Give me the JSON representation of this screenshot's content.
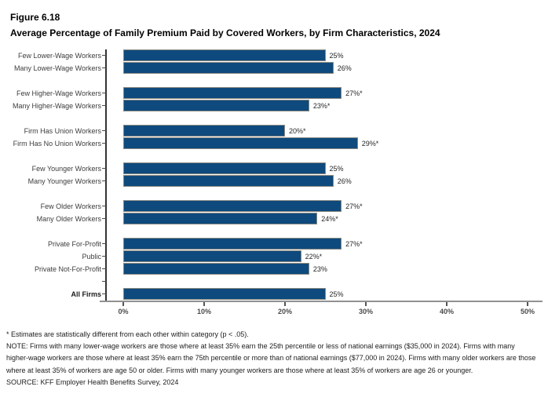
{
  "header": {
    "figure_label": "Figure 6.18",
    "title": "Average Percentage of Family Premium Paid by Covered Workers, by Firm Characteristics, 2024"
  },
  "chart_data": {
    "type": "bar",
    "orientation": "horizontal",
    "title": "Average Percentage of Family Premium Paid by Covered Workers, by Firm Characteristics, 2024",
    "value_unit": "%",
    "xlim": [
      0,
      52
    ],
    "x_tick_values": [
      0,
      10,
      20,
      30,
      40,
      50
    ],
    "x_tick_labels": [
      "0%",
      "10%",
      "20%",
      "30%",
      "40%",
      "50%"
    ],
    "bar_color": "#0e4a7d",
    "bar_border_color": "#8b8980",
    "groups": [
      {
        "name": "wage-level-low",
        "rows": [
          {
            "category": "Few Lower-Wage Workers",
            "value": 25,
            "label": "25%"
          },
          {
            "category": "Many Lower-Wage Workers",
            "value": 26,
            "label": "26%"
          }
        ]
      },
      {
        "name": "wage-level-high",
        "rows": [
          {
            "category": "Few Higher-Wage Workers",
            "value": 27,
            "label": "27%*"
          },
          {
            "category": "Many Higher-Wage Workers",
            "value": 23,
            "label": "23%*"
          }
        ]
      },
      {
        "name": "union-status",
        "rows": [
          {
            "category": "Firm Has Union Workers",
            "value": 20,
            "label": "20%*"
          },
          {
            "category": "Firm Has No Union Workers",
            "value": 29,
            "label": "29%*"
          }
        ]
      },
      {
        "name": "younger-workers",
        "rows": [
          {
            "category": "Few Younger Workers",
            "value": 25,
            "label": "25%"
          },
          {
            "category": "Many Younger Workers",
            "value": 26,
            "label": "26%"
          }
        ]
      },
      {
        "name": "older-workers",
        "rows": [
          {
            "category": "Few Older Workers",
            "value": 27,
            "label": "27%*"
          },
          {
            "category": "Many Older Workers",
            "value": 24,
            "label": "24%*"
          }
        ]
      },
      {
        "name": "ownership-type",
        "rows": [
          {
            "category": "Private For-Profit",
            "value": 27,
            "label": "27%*"
          },
          {
            "category": "Public",
            "value": 22,
            "label": "22%*"
          },
          {
            "category": "Private Not-For-Profit",
            "value": 23,
            "label": "23%"
          }
        ]
      },
      {
        "name": "all-firms",
        "tick_before": true,
        "rows": [
          {
            "category": "All Firms",
            "value": 25,
            "label": "25%",
            "bold": true
          }
        ]
      }
    ]
  },
  "footnotes": {
    "significance": "* Estimates are statistically different from each other within category (p < .05).",
    "note": "NOTE: Firms with many lower-wage workers are those where at least 35% earn the 25th percentile or less of national earnings ($35,000 in 2024). Firms with many higher-wage workers are those where at least 35% earn the 75th percentile or more than of national earnings ($77,000 in 2024). Firms with many older workers are those where at least 35% of workers are age 50 or older. Firms with many younger workers are those where at least 35% of workers are age 26 or younger.",
    "source": "SOURCE: KFF Employer Health Benefits Survey, 2024"
  }
}
